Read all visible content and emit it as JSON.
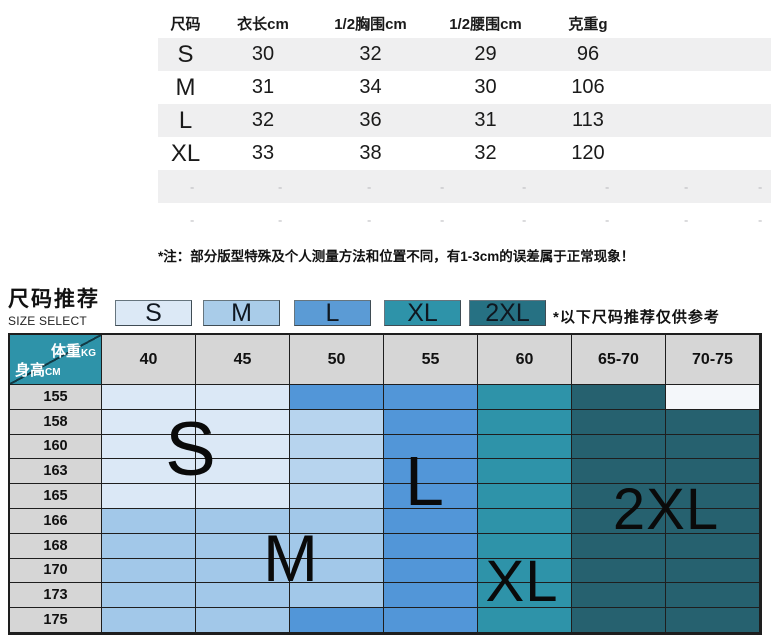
{
  "size_table": {
    "columns": [
      "尺码",
      "衣长cm",
      "1/2胸围cm",
      "1/2腰围cm",
      "克重g"
    ],
    "rows": [
      {
        "size": "S",
        "values": [
          "30",
          "32",
          "29",
          "96"
        ]
      },
      {
        "size": "M",
        "values": [
          "31",
          "34",
          "30",
          "106"
        ]
      },
      {
        "size": "L",
        "values": [
          "32",
          "36",
          "31",
          "113"
        ]
      },
      {
        "size": "XL",
        "values": [
          "33",
          "38",
          "32",
          "120"
        ]
      }
    ],
    "empty_rows": 2,
    "dash": "-",
    "note": "*注：部分版型特殊及个人测量方法和位置不同，有1-3cm的误差属于正常现象！"
  },
  "size_select": {
    "title": "尺码推荐",
    "subtitle": "SIZE SELECT",
    "note": "*以下尺码推荐仅供参考",
    "legend": [
      {
        "label": "S",
        "color": "#dce9f6"
      },
      {
        "label": "M",
        "color": "#a9cce9"
      },
      {
        "label": "L",
        "color": "#5b9bd5"
      },
      {
        "label": "XL",
        "color": "#2e93a9"
      },
      {
        "label": "2XL",
        "color": "#267183"
      }
    ]
  },
  "recommend_grid": {
    "corner": {
      "top_label": "体重",
      "top_unit": "KG",
      "bottom_label": "身高",
      "bottom_unit": "CM"
    },
    "weight_columns": [
      "40",
      "45",
      "50",
      "55",
      "60",
      "65-70",
      "70-75"
    ],
    "height_rows": [
      "155",
      "158",
      "160",
      "163",
      "165",
      "166",
      "168",
      "170",
      "173",
      "175"
    ],
    "cell_colors": {
      "s": "#dbe8f6",
      "sm": "#b7d4ee",
      "m": "#a2c8e9",
      "l": "#5296d8",
      "xl": "#2e93a9",
      "x2": "#26616f",
      "w": "#f4f7fa"
    },
    "cells": [
      [
        "s",
        "s",
        "l",
        "l",
        "xl",
        "x2",
        "w"
      ],
      [
        "s",
        "s",
        "sm",
        "l",
        "xl",
        "x2",
        "x2"
      ],
      [
        "s",
        "s",
        "sm",
        "l",
        "xl",
        "x2",
        "x2"
      ],
      [
        "s",
        "s",
        "sm",
        "l",
        "xl",
        "x2",
        "x2"
      ],
      [
        "s",
        "s",
        "sm",
        "l",
        "xl",
        "x2",
        "x2"
      ],
      [
        "m",
        "m",
        "m",
        "l",
        "xl",
        "x2",
        "x2"
      ],
      [
        "m",
        "m",
        "m",
        "l",
        "xl",
        "x2",
        "x2"
      ],
      [
        "m",
        "m",
        "m",
        "l",
        "xl",
        "x2",
        "x2"
      ],
      [
        "m",
        "m",
        "m",
        "l",
        "xl",
        "x2",
        "x2"
      ],
      [
        "m",
        "m",
        "l",
        "l",
        "xl",
        "x2",
        "x2"
      ]
    ],
    "overlay_labels": [
      "S",
      "M",
      "L",
      "XL",
      "2XL"
    ]
  },
  "chart_data": [
    {
      "type": "table",
      "title": "尺码表",
      "columns": [
        "尺码",
        "衣长cm",
        "1/2胸围cm",
        "1/2腰围cm",
        "克重g"
      ],
      "rows": [
        [
          "S",
          30,
          32,
          29,
          96
        ],
        [
          "M",
          31,
          34,
          30,
          106
        ],
        [
          "L",
          32,
          36,
          31,
          113
        ],
        [
          "XL",
          33,
          38,
          32,
          120
        ]
      ],
      "note": "*注：部分版型特殊及个人测量方法和位置不同，有1-3cm的误差属于正常现象！"
    },
    {
      "type": "heatmap",
      "title": "尺码推荐 SIZE SELECT",
      "xlabel": "体重KG",
      "ylabel": "身高CM",
      "x": [
        "40",
        "45",
        "50",
        "55",
        "60",
        "65-70",
        "70-75"
      ],
      "y": [
        "155",
        "158",
        "160",
        "163",
        "165",
        "166",
        "168",
        "170",
        "173",
        "175"
      ],
      "values": [
        [
          "S",
          "S",
          "L",
          "L",
          "XL",
          "2XL",
          ""
        ],
        [
          "S",
          "S",
          "S/M",
          "L",
          "XL",
          "2XL",
          "2XL"
        ],
        [
          "S",
          "S",
          "S/M",
          "L",
          "XL",
          "2XL",
          "2XL"
        ],
        [
          "S",
          "S",
          "S/M",
          "L",
          "XL",
          "2XL",
          "2XL"
        ],
        [
          "S",
          "S",
          "S/M",
          "L",
          "XL",
          "2XL",
          "2XL"
        ],
        [
          "M",
          "M",
          "M",
          "L",
          "XL",
          "2XL",
          "2XL"
        ],
        [
          "M",
          "M",
          "M",
          "L",
          "XL",
          "2XL",
          "2XL"
        ],
        [
          "M",
          "M",
          "M",
          "L",
          "XL",
          "2XL",
          "2XL"
        ],
        [
          "M",
          "M",
          "M",
          "L",
          "XL",
          "2XL",
          "2XL"
        ],
        [
          "M",
          "M",
          "L",
          "L",
          "XL",
          "2XL",
          "2XL"
        ]
      ],
      "legend": [
        "S",
        "M",
        "L",
        "XL",
        "2XL"
      ],
      "legend_position": "top",
      "grid": true,
      "note": "*以下尺码推荐仅供参考"
    }
  ]
}
